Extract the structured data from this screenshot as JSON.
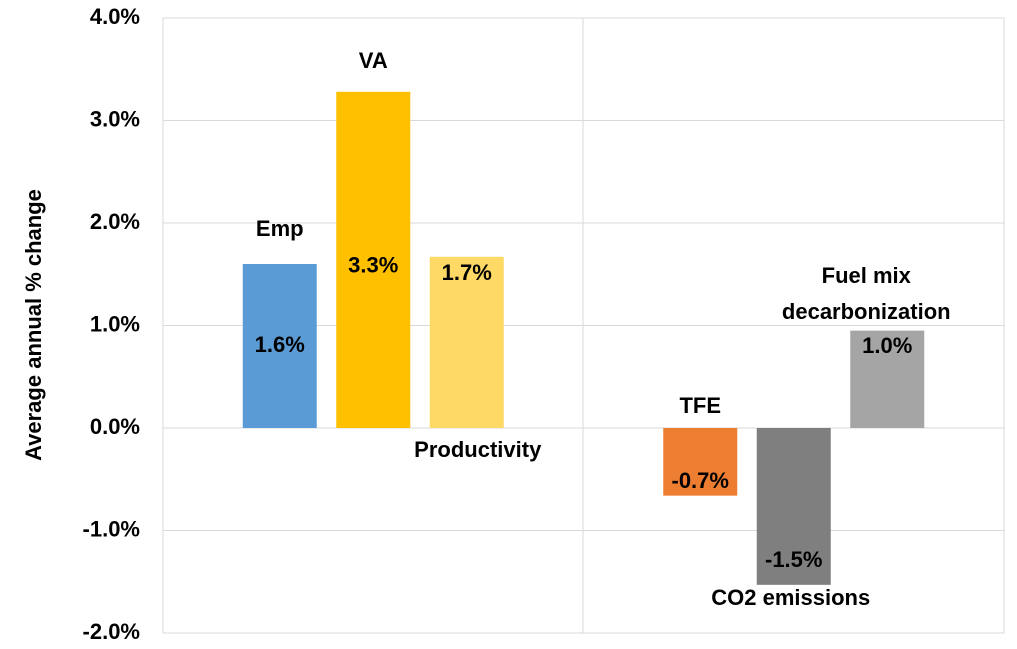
{
  "chart_data": {
    "type": "bar",
    "y_label": "Average annual % change",
    "categories": [
      "Emp",
      "VA",
      "Productivity",
      "TFE",
      "CO2 emissions",
      "Fuel mix decarbonization"
    ],
    "values": [
      1.6,
      3.28,
      1.67,
      -0.66,
      -1.53,
      0.95
    ],
    "value_labels": [
      "1.6%",
      "3.3%",
      "1.7%",
      "-0.7%",
      "-1.5%",
      "1.0%"
    ],
    "colors": [
      "#5b9bd5",
      "#ffc000",
      "#ffd966",
      "#ed7d31",
      "#7f7f7f",
      "#a5a5a5"
    ],
    "ylim": [
      -2,
      4
    ],
    "yticks": [
      {
        "value": -2,
        "label": "-2.0%"
      },
      {
        "value": -1,
        "label": "-1.0%"
      },
      {
        "value": 0,
        "label": "0.0%"
      },
      {
        "value": 1,
        "label": "1.0%"
      },
      {
        "value": 2,
        "label": "2.0%"
      },
      {
        "value": 3,
        "label": "3.0%"
      },
      {
        "value": 4,
        "label": "4.0%"
      }
    ],
    "grid": true
  }
}
